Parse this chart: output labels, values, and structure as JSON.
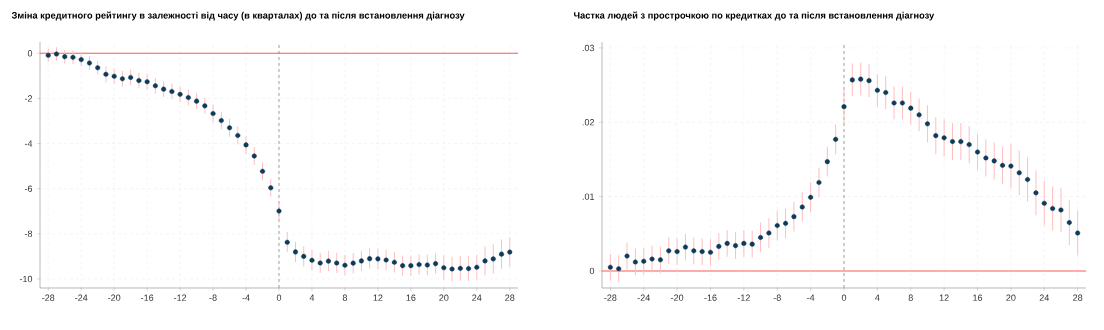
{
  "chart_data": [
    {
      "type": "scatter",
      "title": "Зміна кредитного рейтингу в залежності від часу (в кварталах) до та після встановлення діагнозу",
      "x": [
        -28,
        -27,
        -26,
        -25,
        -24,
        -23,
        -22,
        -21,
        -20,
        -19,
        -18,
        -17,
        -16,
        -15,
        -14,
        -13,
        -12,
        -11,
        -10,
        -9,
        -8,
        -7,
        -6,
        -5,
        -4,
        -3,
        -2,
        -1,
        0,
        1,
        2,
        3,
        4,
        5,
        6,
        7,
        8,
        9,
        10,
        11,
        12,
        13,
        14,
        15,
        16,
        17,
        18,
        19,
        20,
        21,
        22,
        23,
        24,
        25,
        26,
        27,
        28
      ],
      "series": [
        {
          "color": "#0d3b5a",
          "values": [
            -0.09,
            -0.03,
            -0.15,
            -0.18,
            -0.28,
            -0.43,
            -0.64,
            -0.93,
            -1.02,
            -1.13,
            -1.07,
            -1.21,
            -1.26,
            -1.44,
            -1.59,
            -1.69,
            -1.82,
            -1.96,
            -2.12,
            -2.33,
            -2.67,
            -2.98,
            -3.3,
            -3.64,
            -4.06,
            -4.55,
            -5.23,
            -5.96,
            -6.99,
            -8.37,
            -8.8,
            -9.0,
            -9.17,
            -9.29,
            -9.21,
            -9.29,
            -9.39,
            -9.3,
            -9.2,
            -9.1,
            -9.11,
            -9.16,
            -9.26,
            -9.41,
            -9.41,
            -9.36,
            -9.38,
            -9.32,
            -9.5,
            -9.56,
            -9.53,
            -9.54,
            -9.48,
            -9.2,
            -9.11,
            -8.9,
            -8.81
          ],
          "errors": [
            0.3,
            0.3,
            0.3,
            0.3,
            0.3,
            0.3,
            0.3,
            0.35,
            0.35,
            0.35,
            0.35,
            0.35,
            0.35,
            0.35,
            0.35,
            0.35,
            0.35,
            0.35,
            0.35,
            0.35,
            0.4,
            0.4,
            0.4,
            0.4,
            0.4,
            0.4,
            0.4,
            0.4,
            0.45,
            0.45,
            0.45,
            0.45,
            0.45,
            0.45,
            0.45,
            0.45,
            0.45,
            0.45,
            0.45,
            0.45,
            0.45,
            0.45,
            0.45,
            0.45,
            0.45,
            0.45,
            0.45,
            0.45,
            0.55,
            0.55,
            0.55,
            0.55,
            0.55,
            0.65,
            0.65,
            0.65,
            0.65
          ]
        }
      ],
      "xlim": [
        -29,
        29
      ],
      "ylim": [
        -10.4,
        0.5
      ],
      "xticks": [
        -28,
        -24,
        -20,
        -16,
        -12,
        -8,
        -4,
        0,
        4,
        8,
        12,
        16,
        20,
        24,
        28
      ],
      "yticks": [
        -10,
        -8,
        -6,
        -4,
        -2,
        0
      ],
      "grid": true,
      "marker": "circle",
      "ref_lines": [
        {
          "axis": "y",
          "value": 0,
          "color": "#ff5a5a",
          "line_style": "solid"
        },
        {
          "axis": "x",
          "value": 0,
          "color": "#8c8c8c",
          "line_style": "dashed"
        }
      ]
    },
    {
      "type": "scatter",
      "title": "Частка людей з прострочкою по кредитках до та після встановлення діагнозу",
      "x": [
        -28,
        -27,
        -26,
        -25,
        -24,
        -23,
        -22,
        -21,
        -20,
        -19,
        -18,
        -17,
        -16,
        -15,
        -14,
        -13,
        -12,
        -11,
        -10,
        -9,
        -8,
        -7,
        -6,
        -5,
        -4,
        -3,
        -2,
        -1,
        0,
        1,
        2,
        3,
        4,
        5,
        6,
        7,
        8,
        9,
        10,
        11,
        12,
        13,
        14,
        15,
        16,
        17,
        18,
        19,
        20,
        21,
        22,
        23,
        24,
        25,
        26,
        27,
        28
      ],
      "series": [
        {
          "color": "#0d3b5a",
          "values": [
            0.0005,
            0.0003,
            0.002,
            0.0012,
            0.0013,
            0.0016,
            0.0015,
            0.0027,
            0.0026,
            0.0032,
            0.0027,
            0.0026,
            0.0025,
            0.0033,
            0.0037,
            0.0034,
            0.0037,
            0.0036,
            0.0045,
            0.0051,
            0.0061,
            0.0064,
            0.0073,
            0.0086,
            0.0099,
            0.0119,
            0.0147,
            0.0177,
            0.0221,
            0.0257,
            0.0258,
            0.0256,
            0.0243,
            0.024,
            0.0226,
            0.0226,
            0.0219,
            0.021,
            0.0198,
            0.0182,
            0.0179,
            0.0174,
            0.0174,
            0.017,
            0.016,
            0.0152,
            0.0148,
            0.0142,
            0.0141,
            0.0132,
            0.0123,
            0.0105,
            0.0091,
            0.0084,
            0.0082,
            0.0065,
            0.0051
          ],
          "errors": [
            0.0018,
            0.0018,
            0.0018,
            0.0018,
            0.0018,
            0.0018,
            0.0018,
            0.0018,
            0.0018,
            0.0018,
            0.0018,
            0.0018,
            0.0018,
            0.0018,
            0.0018,
            0.0018,
            0.0018,
            0.0018,
            0.002,
            0.002,
            0.002,
            0.002,
            0.002,
            0.002,
            0.002,
            0.002,
            0.002,
            0.002,
            0.0022,
            0.0022,
            0.0022,
            0.0022,
            0.0022,
            0.0022,
            0.0022,
            0.0022,
            0.0022,
            0.0022,
            0.0025,
            0.0025,
            0.0025,
            0.0025,
            0.0025,
            0.0025,
            0.0025,
            0.0025,
            0.0025,
            0.0025,
            0.003,
            0.003,
            0.003,
            0.003,
            0.003,
            0.003,
            0.003,
            0.003,
            0.003
          ]
        }
      ],
      "xlim": [
        -29,
        29
      ],
      "ylim": [
        -0.0023,
        0.0308
      ],
      "xticks": [
        -28,
        -24,
        -20,
        -16,
        -12,
        -8,
        -4,
        0,
        4,
        8,
        12,
        16,
        20,
        24,
        28
      ],
      "yticks": [
        0,
        {
          "value": 0.01,
          "label": ".01"
        },
        {
          "value": 0.02,
          "label": ".02"
        },
        {
          "value": 0.03,
          "label": ".03"
        }
      ],
      "grid": true,
      "marker": "circle",
      "ref_lines": [
        {
          "axis": "y",
          "value": 0,
          "color": "#ff5a5a",
          "line_style": "solid"
        },
        {
          "axis": "x",
          "value": 0,
          "color": "#8c8c8c",
          "line_style": "dashed"
        }
      ]
    }
  ]
}
